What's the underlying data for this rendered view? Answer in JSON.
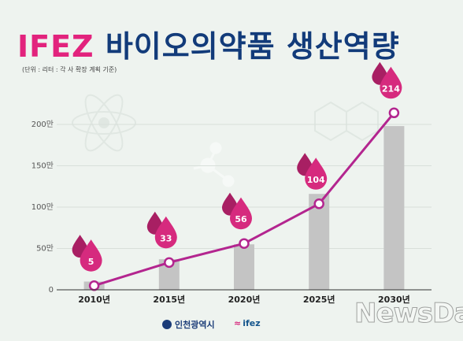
{
  "header": {
    "title_brand": "IFEZ",
    "title_rest": "바이오의약품 생산역량",
    "unit_note": "(단위 : 리터 : 각 사 확장 계획 기준)"
  },
  "footer": {
    "logo_incheon": "인천광역시",
    "logo_ifez": "ifez"
  },
  "watermark": "NewsDa",
  "chart_data": {
    "type": "bar",
    "title": "",
    "xlabel": "",
    "ylabel": "",
    "categories": [
      "2010년",
      "2015년",
      "2020년",
      "2025년",
      "2030년"
    ],
    "series": [
      {
        "values": [
          10,
          37,
          55,
          116,
          198
        ],
        "kind": "bar"
      },
      {
        "values": [
          5,
          33,
          56,
          104,
          214
        ],
        "kind": "line"
      }
    ],
    "yticks": [
      0,
      50,
      100,
      150,
      200
    ],
    "ytick_labels": [
      "0",
      "50만",
      "100만",
      "150만",
      "200만"
    ],
    "ylim": [
      0,
      200
    ],
    "grid": true,
    "colors": {
      "bar": "#c4c4c4",
      "line": "#b3258f",
      "drop": "#d62a7e",
      "drop_dark": "#a81f63"
    }
  }
}
